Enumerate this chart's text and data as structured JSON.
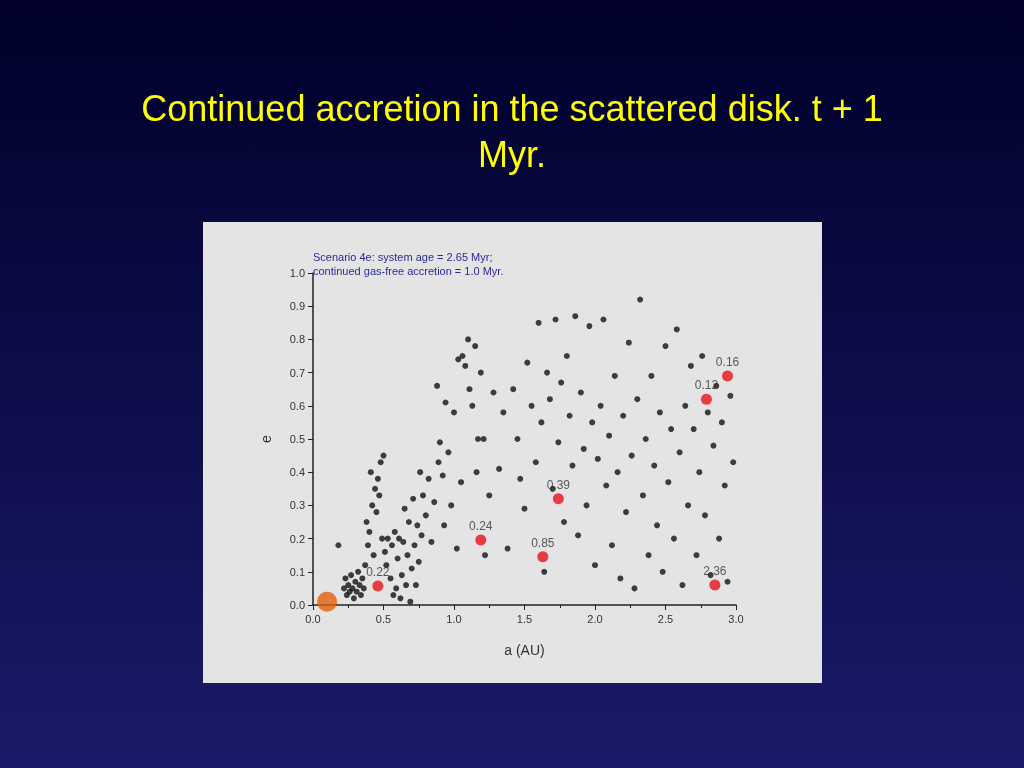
{
  "chart_data": {
    "type": "scatter",
    "title": "Continued accretion in the scattered disk. t + 1 Myr.",
    "xlabel": "a (AU)",
    "ylabel": "e",
    "annotations": [
      "Scenario 4e: system age = 2.65 Myr;\ncontinued gas-free accretion = 1.0 Myr.",
      {
        "text": "0.22",
        "x": 0.46,
        "y": 0.057
      },
      {
        "text": "0.24",
        "x": 1.19,
        "y": 0.196
      },
      {
        "text": "0.85",
        "x": 1.63,
        "y": 0.145
      },
      {
        "text": "0.39",
        "x": 1.74,
        "y": 0.32
      },
      {
        "text": "0.12",
        "x": 2.79,
        "y": 0.62
      },
      {
        "text": "0.16",
        "x": 2.94,
        "y": 0.69
      },
      {
        "text": "2.36",
        "x": 2.85,
        "y": 0.06
      }
    ],
    "xlim": [
      0,
      3
    ],
    "ylim": [
      0,
      1
    ],
    "xticks": [
      {
        "value": 0,
        "label": "0.0"
      },
      0.5,
      {
        "value": 1,
        "label": "1.0"
      },
      1.5,
      {
        "value": 2,
        "label": "2.0"
      },
      2.5,
      {
        "value": 3,
        "label": "3.0"
      }
    ],
    "yticks": [
      {
        "value": 0,
        "label": "0.0"
      },
      0.1,
      0.2,
      0.3,
      0.4,
      0.5,
      0.6,
      0.7,
      0.8,
      0.9,
      {
        "value": 1,
        "label": "1.0"
      }
    ],
    "grid": false,
    "marker": "circle",
    "series": [
      {
        "color": "#111111",
        "x": [
          0.18,
          0.22,
          0.23,
          0.24,
          0.25,
          0.26,
          0.27,
          0.28,
          0.29,
          0.3,
          0.31,
          0.32,
          0.33,
          0.34,
          0.35,
          0.36,
          0.37,
          0.38,
          0.39,
          0.4,
          0.41,
          0.42,
          0.43,
          0.44,
          0.45,
          0.46,
          0.47,
          0.48,
          0.49,
          0.5,
          0.51,
          0.52,
          0.53,
          0.55,
          0.56,
          0.57,
          0.58,
          0.59,
          0.6,
          0.61,
          0.62,
          0.63,
          0.64,
          0.65,
          0.66,
          0.67,
          0.68,
          0.69,
          0.7,
          0.71,
          0.72,
          0.73,
          0.74,
          0.75,
          0.76,
          0.77,
          0.78,
          0.8,
          0.82,
          0.84,
          0.86,
          0.88,
          0.89,
          0.9,
          0.92,
          0.93,
          0.94,
          0.96,
          0.98,
          1.0,
          1.02,
          1.03,
          1.05,
          1.06,
          1.08,
          1.1,
          1.11,
          1.13,
          1.15,
          1.16,
          1.17,
          1.19,
          1.21,
          1.22,
          1.25,
          1.28,
          1.32,
          1.35,
          1.38,
          1.42,
          1.45,
          1.47,
          1.5,
          1.52,
          1.55,
          1.58,
          1.6,
          1.62,
          1.64,
          1.66,
          1.68,
          1.7,
          1.72,
          1.74,
          1.76,
          1.78,
          1.8,
          1.82,
          1.84,
          1.86,
          1.88,
          1.9,
          1.92,
          1.94,
          1.96,
          1.98,
          2.0,
          2.02,
          2.04,
          2.06,
          2.08,
          2.1,
          2.12,
          2.14,
          2.16,
          2.18,
          2.2,
          2.22,
          2.24,
          2.26,
          2.28,
          2.3,
          2.32,
          2.34,
          2.36,
          2.38,
          2.4,
          2.42,
          2.44,
          2.46,
          2.48,
          2.5,
          2.52,
          2.54,
          2.56,
          2.58,
          2.6,
          2.62,
          2.64,
          2.66,
          2.68,
          2.7,
          2.72,
          2.74,
          2.76,
          2.78,
          2.8,
          2.82,
          2.84,
          2.86,
          2.88,
          2.9,
          2.92,
          2.94,
          2.96,
          2.98
        ],
        "values": [
          0.18,
          0.05,
          0.08,
          0.03,
          0.06,
          0.04,
          0.09,
          0.05,
          0.02,
          0.07,
          0.04,
          0.1,
          0.06,
          0.03,
          0.08,
          0.05,
          0.12,
          0.25,
          0.18,
          0.22,
          0.4,
          0.3,
          0.15,
          0.35,
          0.28,
          0.38,
          0.33,
          0.43,
          0.2,
          0.45,
          0.16,
          0.12,
          0.2,
          0.08,
          0.18,
          0.03,
          0.22,
          0.05,
          0.14,
          0.2,
          0.02,
          0.09,
          0.19,
          0.29,
          0.06,
          0.15,
          0.25,
          0.01,
          0.11,
          0.32,
          0.18,
          0.06,
          0.24,
          0.13,
          0.4,
          0.21,
          0.33,
          0.27,
          0.38,
          0.19,
          0.31,
          0.66,
          0.43,
          0.49,
          0.39,
          0.24,
          0.61,
          0.46,
          0.3,
          0.58,
          0.17,
          0.74,
          0.37,
          0.75,
          0.72,
          0.8,
          0.65,
          0.6,
          0.78,
          0.4,
          0.5,
          0.7,
          0.5,
          0.15,
          0.33,
          0.64,
          0.41,
          0.58,
          0.17,
          0.65,
          0.5,
          0.38,
          0.29,
          0.73,
          0.6,
          0.43,
          0.85,
          0.55,
          0.1,
          0.7,
          0.62,
          0.35,
          0.86,
          0.49,
          0.67,
          0.25,
          0.75,
          0.57,
          0.42,
          0.87,
          0.21,
          0.64,
          0.47,
          0.3,
          0.84,
          0.55,
          0.12,
          0.44,
          0.6,
          0.86,
          0.36,
          0.51,
          0.18,
          0.69,
          0.4,
          0.08,
          0.57,
          0.28,
          0.79,
          0.45,
          0.05,
          0.62,
          0.92,
          0.33,
          0.5,
          0.15,
          0.69,
          0.42,
          0.24,
          0.58,
          0.1,
          0.78,
          0.37,
          0.53,
          0.2,
          0.83,
          0.46,
          0.06,
          0.6,
          0.3,
          0.72,
          0.53,
          0.15,
          0.4,
          0.75,
          0.27,
          0.58,
          0.09,
          0.48,
          0.66,
          0.2,
          0.55,
          0.36,
          0.07,
          0.63,
          0.43
        ]
      },
      {
        "color": "#e8121a",
        "x": [
          0.46,
          1.19,
          1.63,
          1.74,
          2.79,
          2.94,
          2.85
        ],
        "values": [
          0.057,
          0.196,
          0.145,
          0.32,
          0.62,
          0.69,
          0.06
        ]
      },
      {
        "color": "#e0600a",
        "x": [
          0.1
        ],
        "values": [
          0.01
        ]
      }
    ]
  }
}
